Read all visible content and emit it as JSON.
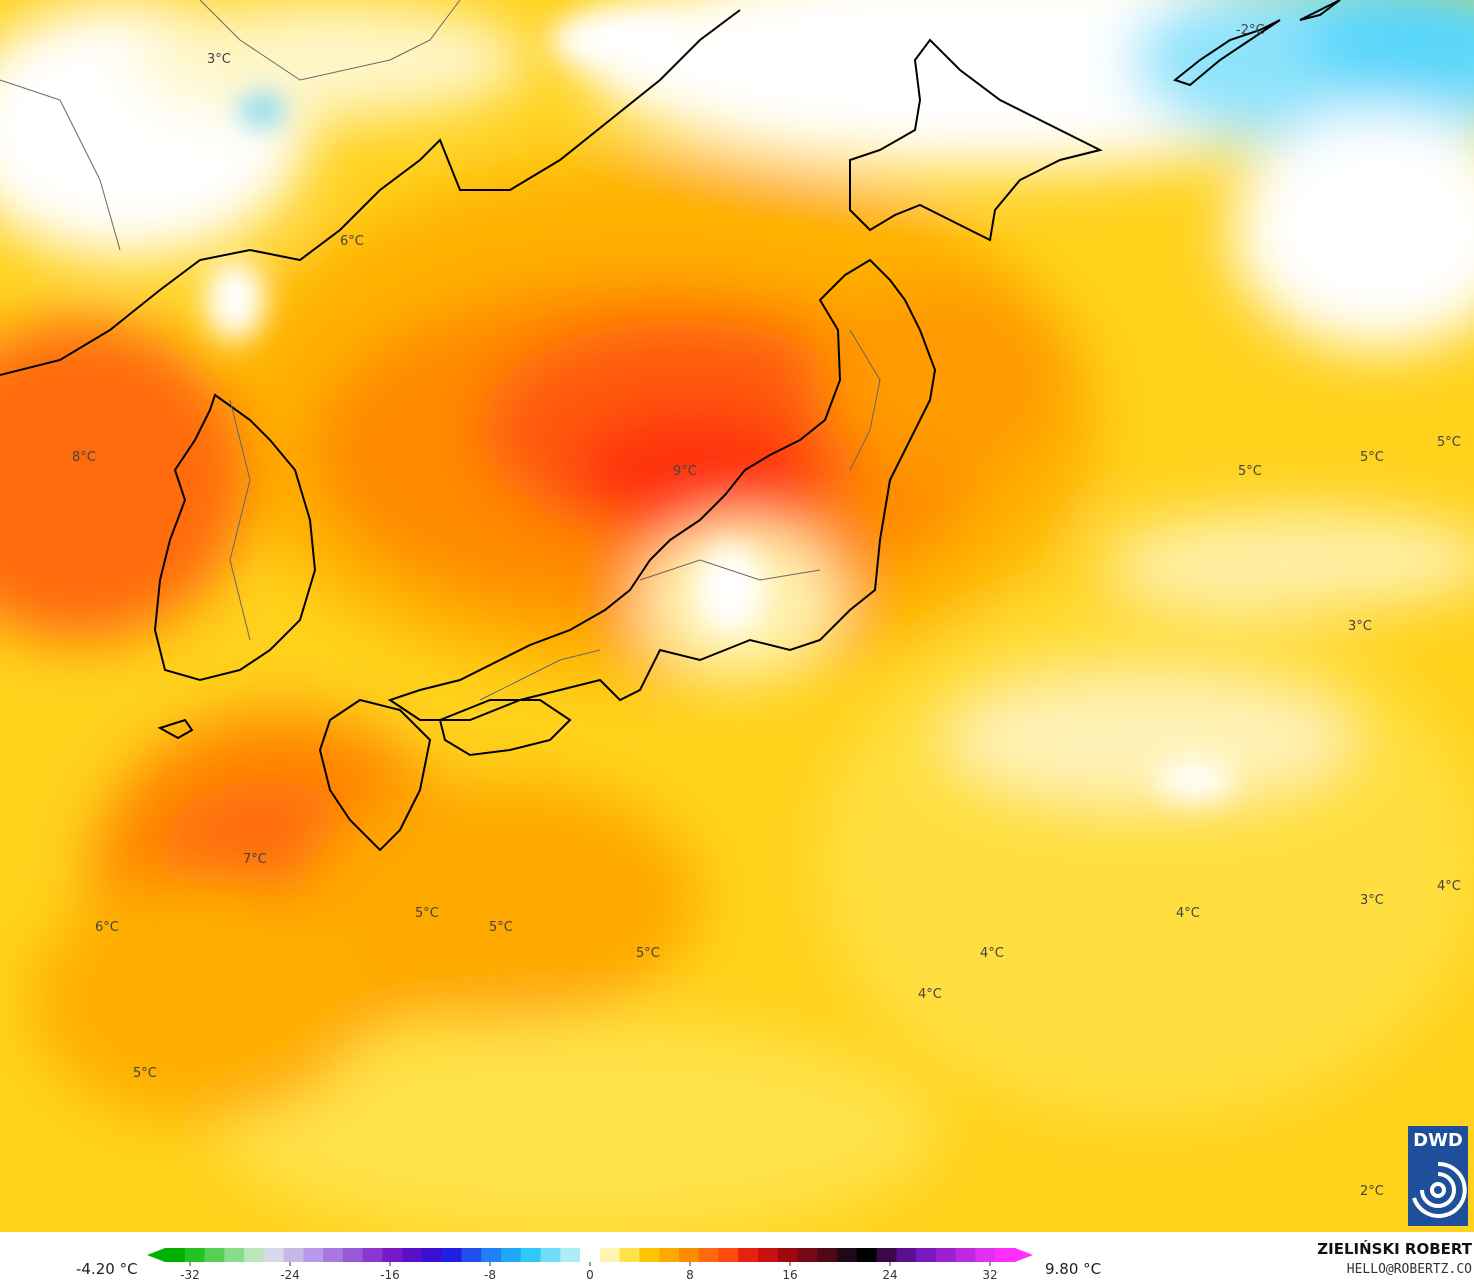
{
  "map": {
    "labels": [
      {
        "text": "3°C"
      },
      {
        "text": "-2°C"
      },
      {
        "text": "6°C"
      },
      {
        "text": "8°C"
      },
      {
        "text": "9°C"
      },
      {
        "text": "5°C"
      },
      {
        "text": "5°C"
      },
      {
        "text": "5°C"
      },
      {
        "text": "3°C"
      },
      {
        "text": "7°C"
      },
      {
        "text": "6°C"
      },
      {
        "text": "5°C"
      },
      {
        "text": "5°C"
      },
      {
        "text": "5°C"
      },
      {
        "text": "4°C"
      },
      {
        "text": "3°C"
      },
      {
        "text": "4°C"
      },
      {
        "text": "4°C"
      },
      {
        "text": "4°C"
      },
      {
        "text": "5°C"
      },
      {
        "text": "2°C"
      }
    ]
  },
  "legend": {
    "min": "-4.20 °C",
    "max": "9.80 °C",
    "ticks": [
      "-32",
      "-24",
      "-16",
      "-8",
      "0",
      "8",
      "16",
      "24",
      "32"
    ],
    "colors": [
      "#00b000",
      "#22c322",
      "#55d055",
      "#88dd88",
      "#bbe6bb",
      "#d8d8e8",
      "#c8b8e8",
      "#b898e8",
      "#a878e0",
      "#9858d8",
      "#8838d0",
      "#7818c8",
      "#5a10c8",
      "#3a10d0",
      "#2020e0",
      "#2050f0",
      "#2080f8",
      "#20a8f8",
      "#30c8f8",
      "#70ddf8",
      "#b0ecf8",
      "#ffffff",
      "#fff4b0",
      "#ffe24a",
      "#ffc400",
      "#ffa800",
      "#ff8c00",
      "#ff6a10",
      "#ff4a10",
      "#e82010",
      "#c81010",
      "#a00810",
      "#780818",
      "#500818",
      "#200818",
      "#000000",
      "#3a0848",
      "#5a1090",
      "#7a18c0",
      "#9a20d0",
      "#c028e0",
      "#e030f0",
      "#ff30ff"
    ]
  },
  "credit": {
    "name": "ZIELIŃSKI ROBERT",
    "email": "HELLO@ROBERTZ.CO"
  },
  "logo": {
    "text": "DWD"
  }
}
